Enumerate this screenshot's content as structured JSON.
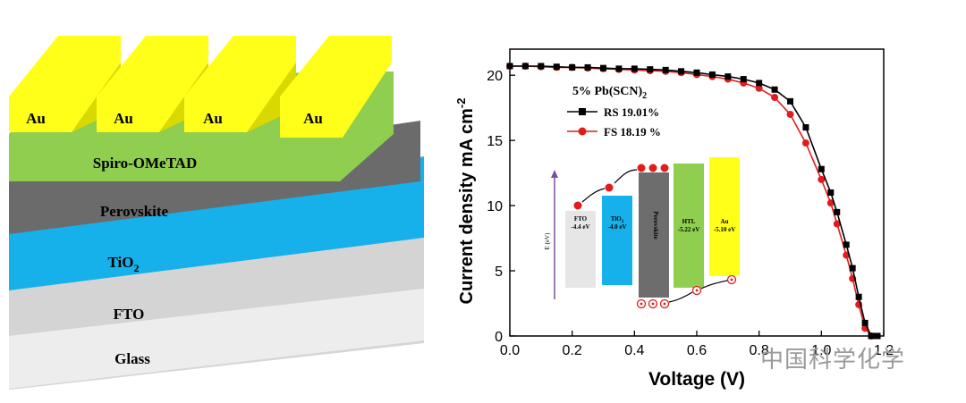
{
  "device_stack": {
    "layers": [
      {
        "name": "Glass",
        "color": "#ebebeb"
      },
      {
        "name": "FTO",
        "color": "#d4d4d4"
      },
      {
        "name": "TiO",
        "subscript": "2",
        "color": "#16b1ea"
      },
      {
        "name": "Perovskite",
        "color": "#6d6d6d"
      },
      {
        "name": "Spiro-OMeTAD",
        "color": "#8fce4e"
      }
    ],
    "electrodes": [
      "Au",
      "Au",
      "Au",
      "Au"
    ],
    "electrode_color": "#ffff1a"
  },
  "chart_data": {
    "type": "line",
    "xlabel": "Voltage (V)",
    "ylabel": "Current density mA cm",
    "ylabel_superscript": "-2",
    "xlim": [
      0.0,
      1.2
    ],
    "ylim": [
      0,
      22
    ],
    "xticks": [
      "0.0",
      "0.2",
      "0.4",
      "0.6",
      "0.8",
      "1.0",
      "1.2"
    ],
    "yticks": [
      "0",
      "5",
      "10",
      "15",
      "20"
    ],
    "annotation": "5% Pb(SCN)",
    "annotation_subscript": "2",
    "series": [
      {
        "name": "RS 19.01%",
        "color": "#000000",
        "marker": "square",
        "x": [
          0,
          0.05,
          0.1,
          0.15,
          0.2,
          0.25,
          0.3,
          0.35,
          0.4,
          0.45,
          0.5,
          0.55,
          0.6,
          0.65,
          0.7,
          0.75,
          0.8,
          0.85,
          0.9,
          0.95,
          1.0,
          1.03,
          1.05,
          1.08,
          1.1,
          1.12,
          1.14,
          1.16,
          1.18
        ],
        "y": [
          20.7,
          20.7,
          20.7,
          20.65,
          20.6,
          20.6,
          20.55,
          20.5,
          20.5,
          20.45,
          20.4,
          20.3,
          20.2,
          20.05,
          19.9,
          19.7,
          19.4,
          18.9,
          18.0,
          16.0,
          12.8,
          11.0,
          9.5,
          7.0,
          5.2,
          3.0,
          1.0,
          0.0,
          0.0
        ]
      },
      {
        "name": "FS 18.19 %",
        "color": "#e21c1c",
        "marker": "circle",
        "x": [
          0,
          0.05,
          0.1,
          0.15,
          0.2,
          0.25,
          0.3,
          0.35,
          0.4,
          0.45,
          0.5,
          0.55,
          0.6,
          0.65,
          0.7,
          0.75,
          0.8,
          0.85,
          0.9,
          0.95,
          1.0,
          1.03,
          1.05,
          1.08,
          1.1,
          1.12,
          1.14,
          1.16
        ],
        "y": [
          20.7,
          20.7,
          20.65,
          20.6,
          20.6,
          20.55,
          20.5,
          20.45,
          20.4,
          20.35,
          20.3,
          20.2,
          20.05,
          19.9,
          19.7,
          19.4,
          19.0,
          18.3,
          17.0,
          14.8,
          12.0,
          10.2,
          8.6,
          6.2,
          4.4,
          2.4,
          0.6,
          0.0
        ]
      }
    ],
    "inset": {
      "axis_label": "E (eV)",
      "levels": [
        {
          "name": "FTO",
          "value": "-4.4 eV",
          "color": "#e6e6e6"
        },
        {
          "name": "TiO",
          "subscript": "2",
          "value": "-4.0 eV",
          "color": "#16b1ea"
        },
        {
          "name": "Perovskite",
          "value": "",
          "color": "#6d6d6d"
        },
        {
          "name": "HTL",
          "value": "-5.22 eV",
          "color": "#8fce4e"
        },
        {
          "name": "Au",
          "value": "-5.10 eV",
          "color": "#ffff1a"
        }
      ]
    }
  },
  "watermark": "中国科学化学"
}
